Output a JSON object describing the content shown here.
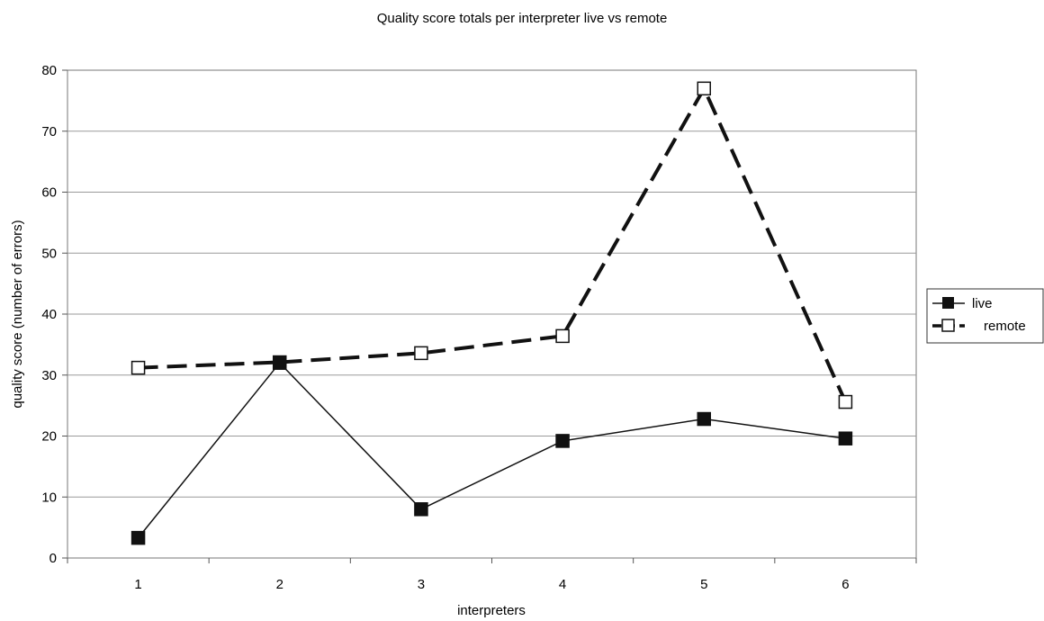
{
  "chart_data": {
    "type": "line",
    "title": "Quality score totals per interpreter live vs remote",
    "xlabel": "interpreters",
    "ylabel": "quality score (number of errors)",
    "categories": [
      "1",
      "2",
      "3",
      "4",
      "5",
      "6"
    ],
    "ylim": [
      0,
      80
    ],
    "yticks": [
      0,
      10,
      20,
      30,
      40,
      50,
      60,
      70,
      80
    ],
    "grid": true,
    "legend_position": "right",
    "series": [
      {
        "name": "live",
        "values": [
          3.3,
          32.0,
          8.0,
          19.2,
          22.8,
          19.6
        ],
        "line_style": "solid",
        "marker": "filled-square",
        "color": "#111111"
      },
      {
        "name": "remote",
        "values": [
          31.2,
          32.1,
          33.6,
          36.4,
          77.0,
          25.6
        ],
        "line_style": "dashed",
        "marker": "open-square",
        "color": "#111111"
      }
    ]
  }
}
